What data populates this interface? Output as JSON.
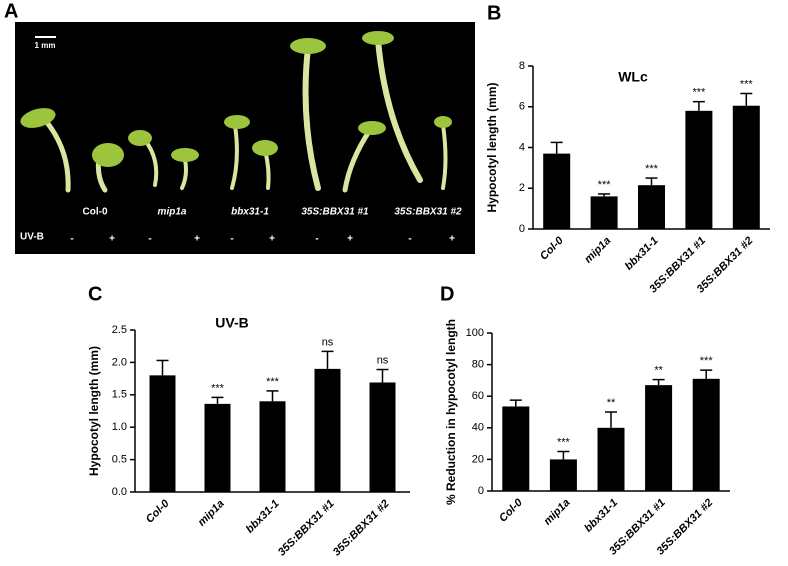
{
  "photo": {
    "panel": "A",
    "scale_bar": "1 mm",
    "genotypes": [
      "Col-0",
      "mip1a",
      "bbx31-1",
      "35S:BBX31 #1",
      "35S:BBX31 #2"
    ],
    "treatment_label": "UV-B",
    "treatments": [
      "-",
      "+"
    ]
  },
  "chart_data": [
    {
      "type": "bar",
      "panel": "B",
      "title": "WLc",
      "y_label": "Hypocotyl length (mm)",
      "categories": [
        "Col-0",
        "mip1a",
        "bbx31-1",
        "35S:BBX31 #1",
        "35S:BBX31 #2"
      ],
      "values": [
        3.7,
        1.6,
        2.15,
        5.8,
        6.05
      ],
      "errors": [
        0.55,
        0.12,
        0.35,
        0.45,
        0.6
      ],
      "annotations": [
        null,
        "***",
        "***",
        "***",
        "***"
      ],
      "color": "#000000",
      "ylim": [
        0,
        8
      ],
      "yticks": [
        0,
        2,
        4,
        6,
        8
      ]
    },
    {
      "type": "bar",
      "panel": "C",
      "title": "UV-B",
      "y_label": "Hypocotyl length (mm)",
      "categories": [
        "Col-0",
        "mip1a",
        "bbx31-1",
        "35S:BBX31 #1",
        "35S:BBX31 #2"
      ],
      "values": [
        1.8,
        1.36,
        1.4,
        1.9,
        1.69
      ],
      "errors": [
        0.23,
        0.1,
        0.16,
        0.27,
        0.2
      ],
      "annotations": [
        null,
        "***",
        "***",
        "ns",
        "ns"
      ],
      "color": "#000000",
      "ylim": [
        0,
        2.5
      ],
      "yticks": [
        {
          "value": 0,
          "label": "0.0"
        },
        0.5,
        {
          "value": 1,
          "label": "1.0"
        },
        1.5,
        {
          "value": 2,
          "label": "2.0"
        },
        2.5
      ]
    },
    {
      "type": "bar",
      "panel": "D",
      "y_label": "% Reduction in hypocotyl length",
      "categories": [
        "Col-0",
        "mip1a",
        "bbx31-1",
        "35S:BBX31 #1",
        "35S:BBX31 #2"
      ],
      "values": [
        53.5,
        20,
        40,
        67,
        71
      ],
      "errors": [
        4,
        5,
        10,
        3.5,
        5.5
      ],
      "annotations": [
        null,
        "***",
        "**",
        "**",
        "***"
      ],
      "color": "#000000",
      "ylim": [
        0,
        100
      ],
      "yticks": [
        0,
        20,
        40,
        60,
        80,
        100
      ]
    }
  ]
}
